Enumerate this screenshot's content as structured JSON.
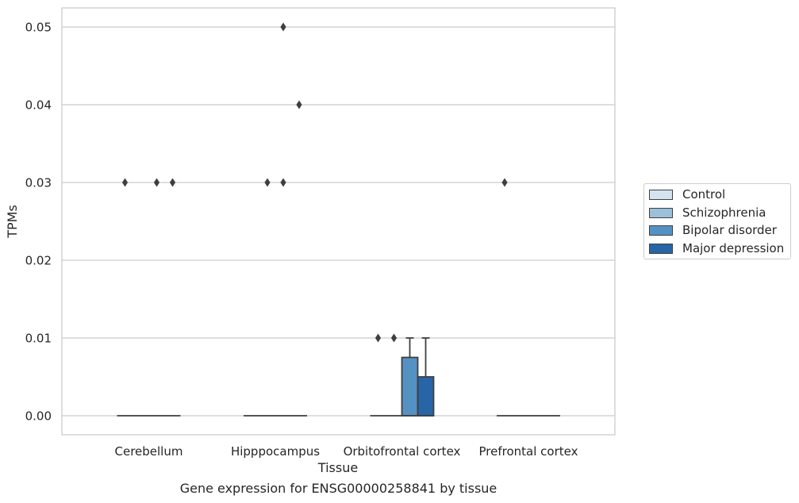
{
  "chart_data": {
    "type": "box",
    "title": "Gene expression for ENSG00000258841 by tissue",
    "xlabel": "Tissue",
    "ylabel": "TPMs",
    "ylim": [
      -0.0025,
      0.0525
    ],
    "yticks": [
      "0.00",
      "0.01",
      "0.02",
      "0.03",
      "0.04",
      "0.05"
    ],
    "grid": true,
    "legend_position": "right",
    "categories": [
      "Cerebellum",
      "Hipppocampus",
      "Orbitofrontal cortex",
      "Prefrontal cortex"
    ],
    "series": [
      {
        "name": "Control",
        "color": "#d5e3f0",
        "boxes": [
          {
            "q1": 0,
            "median": 0,
            "q3": 0,
            "whislo": 0,
            "whishi": 0,
            "fliers": [
              0.03
            ]
          },
          {
            "q1": 0,
            "median": 0,
            "q3": 0,
            "whislo": 0,
            "whishi": 0,
            "fliers": []
          },
          {
            "q1": 0,
            "median": 0,
            "q3": 0,
            "whislo": 0,
            "whishi": 0,
            "fliers": [
              0.01
            ]
          },
          {
            "q1": 0,
            "median": 0,
            "q3": 0,
            "whislo": 0,
            "whishi": 0,
            "fliers": [
              0.03
            ]
          }
        ]
      },
      {
        "name": "Schizophrenia",
        "color": "#9ac0da",
        "boxes": [
          {
            "q1": 0,
            "median": 0,
            "q3": 0,
            "whislo": 0,
            "whishi": 0,
            "fliers": []
          },
          {
            "q1": 0,
            "median": 0,
            "q3": 0,
            "whislo": 0,
            "whishi": 0,
            "fliers": [
              0.03
            ]
          },
          {
            "q1": 0,
            "median": 0,
            "q3": 0,
            "whislo": 0,
            "whishi": 0,
            "fliers": [
              0.01
            ]
          },
          {
            "q1": 0,
            "median": 0,
            "q3": 0,
            "whislo": 0,
            "whishi": 0,
            "fliers": []
          }
        ]
      },
      {
        "name": "Bipolar disorder",
        "color": "#5592c4",
        "boxes": [
          {
            "q1": 0,
            "median": 0,
            "q3": 0,
            "whislo": 0,
            "whishi": 0,
            "fliers": [
              0.03
            ]
          },
          {
            "q1": 0,
            "median": 0,
            "q3": 0,
            "whislo": 0,
            "whishi": 0,
            "fliers": [
              0.03,
              0.05
            ]
          },
          {
            "q1": 0,
            "median": 0,
            "q3": 0.0075,
            "whislo": 0,
            "whishi": 0.01,
            "fliers": []
          },
          {
            "q1": 0,
            "median": 0,
            "q3": 0,
            "whislo": 0,
            "whishi": 0,
            "fliers": []
          }
        ]
      },
      {
        "name": "Major depression",
        "color": "#2765a6",
        "boxes": [
          {
            "q1": 0,
            "median": 0,
            "q3": 0,
            "whislo": 0,
            "whishi": 0,
            "fliers": [
              0.03
            ]
          },
          {
            "q1": 0,
            "median": 0,
            "q3": 0,
            "whislo": 0,
            "whishi": 0,
            "fliers": [
              0.04
            ]
          },
          {
            "q1": 0,
            "median": 0,
            "q3": 0.005,
            "whislo": 0,
            "whishi": 0.01,
            "fliers": []
          },
          {
            "q1": 0,
            "median": 0,
            "q3": 0,
            "whislo": 0,
            "whishi": 0,
            "fliers": []
          }
        ]
      }
    ]
  }
}
